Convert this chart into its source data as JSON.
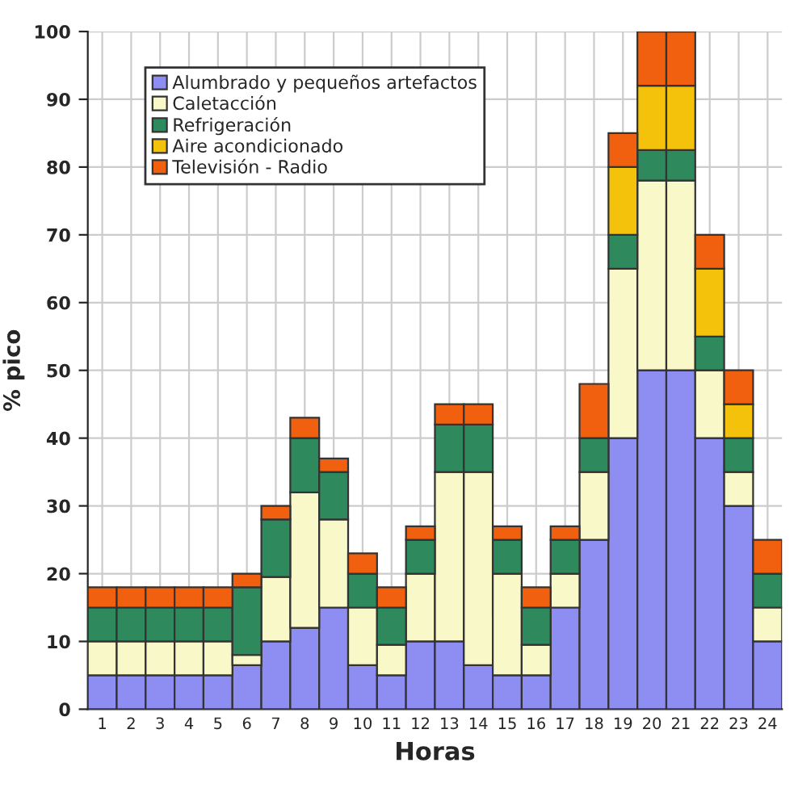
{
  "chart_data": {
    "type": "bar",
    "stacked": true,
    "xlabel": "Horas",
    "ylabel": "% pico",
    "categories": [
      "1",
      "2",
      "3",
      "4",
      "5",
      "6",
      "7",
      "8",
      "9",
      "10",
      "11",
      "12",
      "13",
      "14",
      "15",
      "16",
      "17",
      "18",
      "19",
      "20",
      "21",
      "22",
      "23",
      "24"
    ],
    "series": [
      {
        "name": "Alumbrado y pequeños artefactos",
        "color": "#8e8ef2",
        "values": [
          5,
          5,
          5,
          5,
          5,
          6.5,
          10,
          12,
          15,
          6.5,
          5,
          10,
          10,
          6.5,
          5,
          5,
          15,
          25,
          40,
          50,
          50,
          40,
          30,
          10
        ]
      },
      {
        "name": "Caletacción",
        "color": "#f8f8c8",
        "values": [
          5,
          5,
          5,
          5,
          5,
          1.5,
          9.5,
          20,
          13,
          8.5,
          4.5,
          10,
          25,
          28.5,
          15,
          4.5,
          5,
          10,
          25,
          28,
          28,
          10,
          5,
          5
        ]
      },
      {
        "name": "Refrigeración",
        "color": "#2e8a5c",
        "values": [
          5,
          5,
          5,
          5,
          5,
          10,
          8.5,
          8,
          7,
          5,
          5.5,
          5,
          7,
          7,
          5,
          5.5,
          5,
          5,
          5,
          4.5,
          4.5,
          5,
          5,
          5
        ]
      },
      {
        "name": "Aire acondicionado",
        "color": "#f4c20a",
        "values": [
          null,
          null,
          null,
          null,
          null,
          null,
          null,
          null,
          null,
          null,
          null,
          null,
          null,
          null,
          null,
          null,
          null,
          null,
          10,
          9.5,
          9.5,
          10,
          5,
          null
        ]
      },
      {
        "name": "Televisión - Radio",
        "color": "#f0600e",
        "values": [
          3,
          3,
          3,
          3,
          3,
          2,
          2,
          3,
          2,
          3,
          3,
          2,
          3,
          3,
          2,
          3,
          2,
          8,
          5,
          8,
          8,
          5,
          5,
          5
        ]
      }
    ],
    "ylim": [
      0,
      100
    ],
    "yticks": [
      0,
      10,
      20,
      30,
      40,
      50,
      60,
      70,
      80,
      90,
      100
    ],
    "grid": true,
    "legend": "top left"
  }
}
